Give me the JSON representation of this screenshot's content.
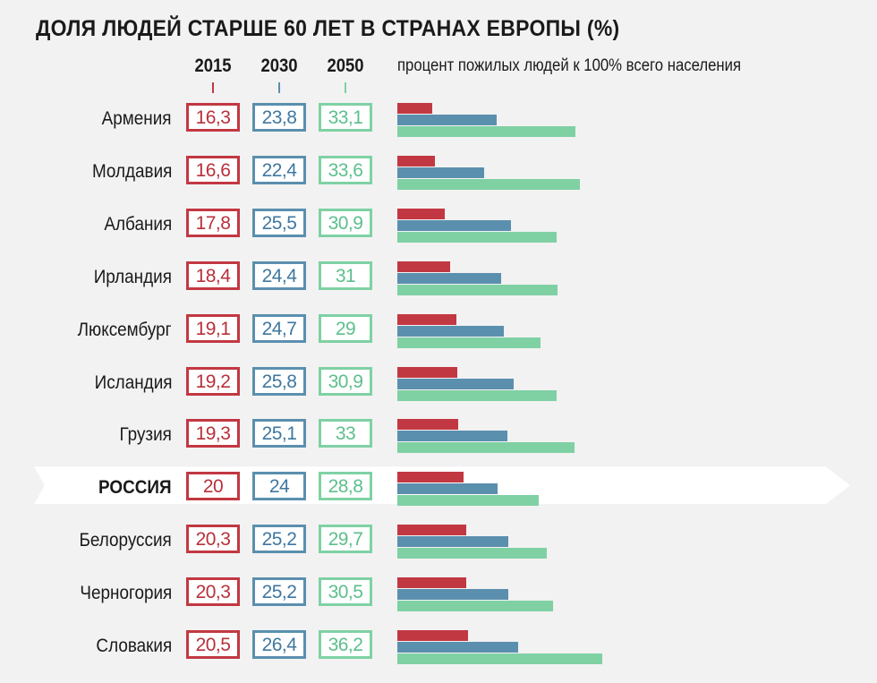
{
  "title": "ДОЛЯ ЛЮДЕЙ СТАРШЕ 60 ЛЕТ В СТРАНАХ ЕВРОПЫ (%)",
  "subtitle": "процент пожилых людей к 100% всего населения",
  "colors": {
    "2015": "#c23842",
    "2030": "#5b8fae",
    "2050": "#7fd1a4"
  },
  "chart_data": {
    "type": "bar",
    "orientation": "horizontal",
    "title": "ДОЛЯ ЛЮДЕЙ СТАРШЕ 60 ЛЕТ В СТРАНАХ ЕВРОПЫ (%)",
    "subtitle": "процент пожилых людей к 100% всего населения",
    "categories": [
      "Армения",
      "Молдавия",
      "Албания",
      "Ирландия",
      "Люксембург",
      "Исландия",
      "Грузия",
      "РОССИЯ",
      "Белоруссия",
      "Черногория",
      "Словакия"
    ],
    "highlighted_category": "РОССИЯ",
    "series": [
      {
        "name": "2015",
        "labels": [
          "16,3",
          "16,6",
          "17,8",
          "18,4",
          "19,1",
          "19,2",
          "19,3",
          "20",
          "20,3",
          "20,3",
          "20,5"
        ],
        "values": [
          16.3,
          16.6,
          17.8,
          18.4,
          19.1,
          19.2,
          19.3,
          20,
          20.3,
          20.3,
          20.5
        ]
      },
      {
        "name": "2030",
        "labels": [
          "23,8",
          "22,4",
          "25,5",
          "24,4",
          "24,7",
          "25,8",
          "25,1",
          "24",
          "25,2",
          "25,2",
          "26,4"
        ],
        "values": [
          23.8,
          22.4,
          25.5,
          24.4,
          24.7,
          25.8,
          25.1,
          24,
          25.2,
          25.2,
          26.4
        ]
      },
      {
        "name": "2050",
        "labels": [
          "33,1",
          "33,6",
          "30,9",
          "31",
          "29",
          "30,9",
          "33",
          "28,8",
          "29,7",
          "30,5",
          "36,2"
        ],
        "values": [
          33.1,
          33.6,
          30.9,
          31,
          29,
          30.9,
          33,
          28.8,
          29.7,
          30.5,
          36.2
        ]
      }
    ],
    "grid": false,
    "axes_visible": false,
    "legend_placement": "top"
  }
}
